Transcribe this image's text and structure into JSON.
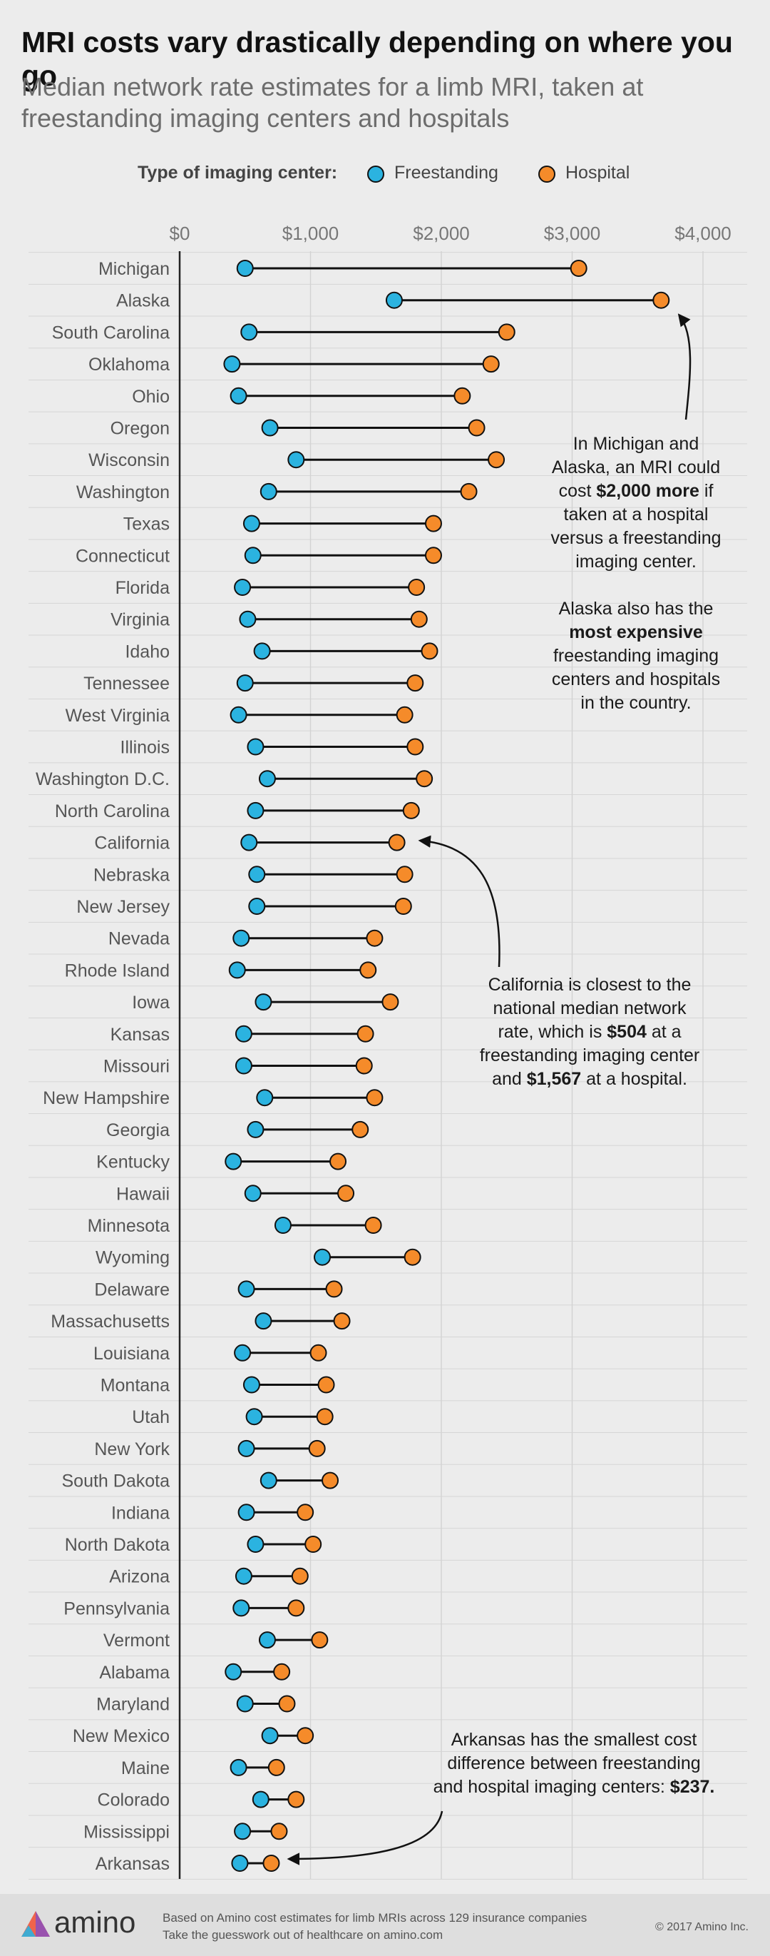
{
  "title": "MRI costs vary drastically depending on where you go",
  "subtitle": "Median network rate estimates for a limb MRI, taken at freestanding imaging centers and hospitals",
  "legend": {
    "title": "Type of imaging center:",
    "freestanding_label": "Freestanding",
    "hospital_label": "Hospital"
  },
  "colors": {
    "freestanding": "#2bb3e0",
    "hospital": "#f58b2a",
    "background": "#ececec",
    "footer": "#dedede"
  },
  "chart_data": {
    "type": "dumbbell",
    "x_ticks": [
      "$0",
      "$1,000",
      "$2,000",
      "$3,000",
      "$4,000"
    ],
    "x_tick_values": [
      0,
      1000,
      2000,
      3000,
      4000
    ],
    "xlim": [
      0,
      4200
    ],
    "grid": true,
    "categories": [
      "Michigan",
      "Alaska",
      "South Carolina",
      "Oklahoma",
      "Ohio",
      "Oregon",
      "Wisconsin",
      "Washington",
      "Texas",
      "Connecticut",
      "Florida",
      "Virginia",
      "Idaho",
      "Tennessee",
      "West Virginia",
      "Illinois",
      "Washington D.C.",
      "North Carolina",
      "California",
      "Nebraska",
      "New Jersey",
      "Nevada",
      "Rhode Island",
      "Iowa",
      "Kansas",
      "Missouri",
      "New Hampshire",
      "Georgia",
      "Kentucky",
      "Hawaii",
      "Minnesota",
      "Wyoming",
      "Delaware",
      "Massachusetts",
      "Louisiana",
      "Montana",
      "Utah",
      "New York",
      "South Dakota",
      "Indiana",
      "North Dakota",
      "Arizona",
      "Pennsylvania",
      "Vermont",
      "Alabama",
      "Maryland",
      "New Mexico",
      "Maine",
      "Colorado",
      "Mississippi",
      "Arkansas"
    ],
    "series": [
      {
        "name": "Freestanding",
        "values": [
          500,
          1640,
          530,
          400,
          450,
          690,
          890,
          680,
          550,
          560,
          480,
          520,
          630,
          500,
          450,
          580,
          670,
          580,
          530,
          590,
          590,
          470,
          440,
          640,
          490,
          490,
          650,
          580,
          410,
          560,
          790,
          1090,
          510,
          640,
          480,
          550,
          570,
          510,
          680,
          510,
          580,
          490,
          470,
          670,
          410,
          500,
          690,
          450,
          620,
          480,
          460
        ]
      },
      {
        "name": "Hospital",
        "values": [
          3050,
          3680,
          2500,
          2380,
          2160,
          2270,
          2420,
          2210,
          1940,
          1940,
          1810,
          1830,
          1910,
          1800,
          1720,
          1800,
          1870,
          1770,
          1660,
          1720,
          1710,
          1490,
          1440,
          1610,
          1420,
          1410,
          1490,
          1380,
          1210,
          1270,
          1480,
          1780,
          1180,
          1240,
          1060,
          1120,
          1110,
          1050,
          1150,
          960,
          1020,
          920,
          890,
          1070,
          780,
          820,
          960,
          740,
          890,
          760,
          700
        ]
      }
    ]
  },
  "annotations": {
    "michigan_alaska": {
      "lines": [
        "In Michigan and",
        "Alaska, an MRI could",
        "cost |$2,000 more| if",
        "taken at a hospital",
        "versus a freestanding",
        "imaging center.",
        "",
        "Alaska also has the",
        "|most expensive|",
        "freestanding imaging",
        "centers and hospitals",
        "in the country."
      ]
    },
    "california": {
      "lines": [
        "California is closest to the",
        "national median network",
        "rate, which is |$504| at a",
        "freestanding imaging center",
        "and |$1,567| at a hospital."
      ]
    },
    "arkansas": {
      "lines": [
        "Arkansas has the smallest cost",
        "difference between freestanding",
        "and hospital imaging centers: |$237.|"
      ]
    }
  },
  "footer": {
    "logo": "amino",
    "note1": "Based on Amino cost estimates for limb MRIs across 129 insurance companies",
    "note2": "Take the guesswork out of healthcare on amino.com",
    "copyright": "© 2017 Amino Inc."
  }
}
